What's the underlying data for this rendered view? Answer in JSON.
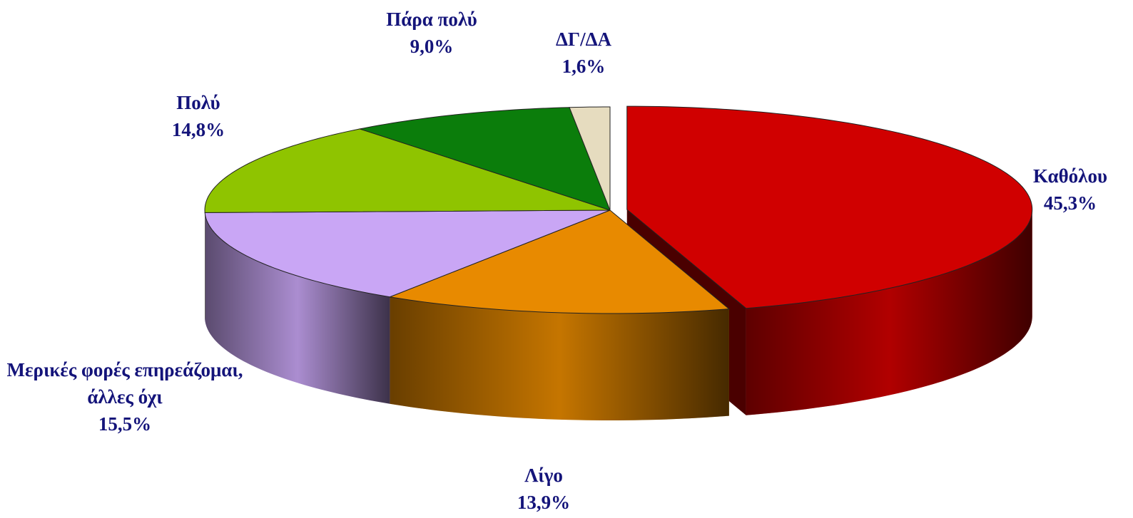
{
  "chart_data": {
    "type": "pie3d",
    "categories": [
      "Καθόλου",
      "Λίγο",
      "Μερικές φορές επηρεάζομαι, άλλες όχι",
      "Πολύ",
      "Πάρα πολύ",
      "ΔΓ/ΔΑ"
    ],
    "values": [
      45.3,
      13.9,
      15.5,
      14.8,
      9.0,
      1.6
    ],
    "value_labels": [
      "45,3%",
      "13,9%",
      "15,5%",
      "14,8%",
      "9,0%",
      "1,6%"
    ],
    "colors": [
      "#d00000",
      "#e88a00",
      "#c9a6f5",
      "#8fc400",
      "#0b7d0b",
      "#e6dcbf"
    ]
  }
}
